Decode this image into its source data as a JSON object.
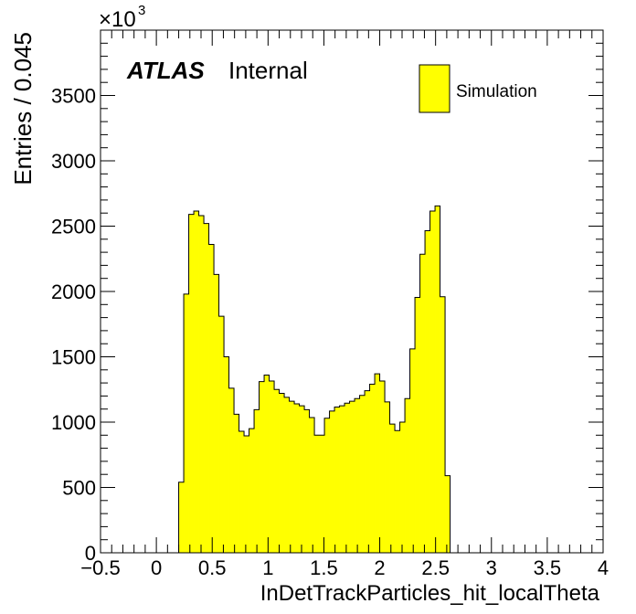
{
  "chart_data": {
    "type": "bar",
    "xlabel": "InDetTrackParticles_hit_localTheta",
    "ylabel": "Entries / 0.045",
    "exponent_base": "×10",
    "exponent_power": "3",
    "xlim": [
      -0.5,
      4.0
    ],
    "ylim": [
      0,
      4000
    ],
    "bin_width": 0.045,
    "x_start": 0.2,
    "values": [
      540,
      1980,
      2590,
      2615,
      2580,
      2520,
      2360,
      2130,
      1810,
      1500,
      1260,
      1060,
      930,
      895,
      950,
      1095,
      1310,
      1360,
      1315,
      1250,
      1220,
      1190,
      1160,
      1140,
      1125,
      1095,
      1035,
      900,
      900,
      1030,
      1085,
      1115,
      1125,
      1145,
      1160,
      1180,
      1205,
      1240,
      1290,
      1370,
      1315,
      1155,
      985,
      935,
      1000,
      1180,
      1560,
      1955,
      2285,
      2465,
      2615,
      2655,
      1960,
      590
    ],
    "xticks": [
      -0.5,
      0,
      0.5,
      1,
      1.5,
      2,
      2.5,
      3,
      3.5,
      4
    ],
    "xtick_labels": [
      "−0.5",
      "0",
      "0.5",
      "1",
      "1.5",
      "2",
      "2.5",
      "3",
      "3.5",
      "4"
    ],
    "yticks": [
      0,
      500,
      1000,
      1500,
      2000,
      2500,
      3000,
      3500
    ],
    "ytick_labels": [
      "0",
      "500",
      "1000",
      "1500",
      "2000",
      "2500",
      "3000",
      "3500"
    ],
    "series": [
      {
        "name": "Simulation",
        "color": "#ffff00"
      }
    ],
    "legend_position": "top-right",
    "grid": false
  },
  "atlas_label": "ATLAS",
  "atlas_sublabel": "Internal",
  "fill_color": "#ffff00",
  "line_color": "#000000"
}
